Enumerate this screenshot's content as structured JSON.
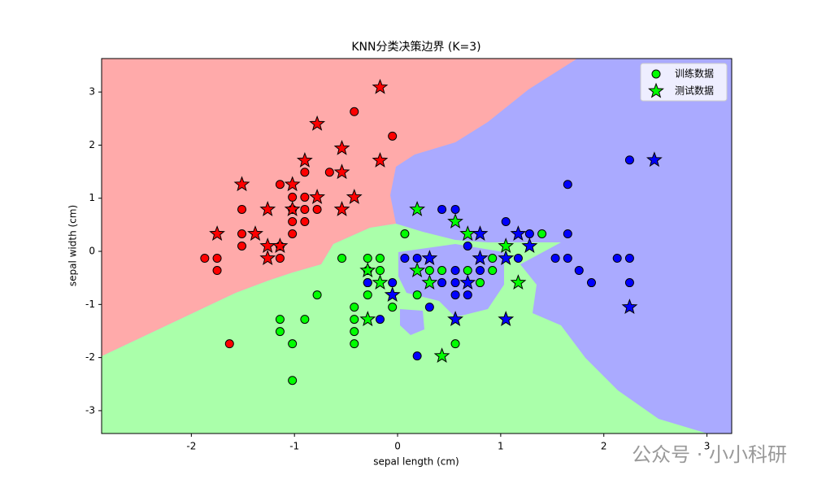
{
  "chart_data": {
    "type": "scatter",
    "title": "KNN分类决策边界 (K=3)",
    "x_label": "sepal length (cm)",
    "y_label": "sepal width (cm)",
    "xlim": [
      -2.87,
      3.24
    ],
    "ylim": [
      -3.43,
      3.63
    ],
    "xticks": [
      -2,
      -1,
      0,
      1,
      2,
      3
    ],
    "yticks": [
      -3,
      -2,
      -1,
      0,
      1,
      2,
      3
    ],
    "legend_position": "upper right",
    "legend": [
      {
        "name": "训练数据",
        "marker": "circle",
        "color": "#00ff00"
      },
      {
        "name": "测试数据",
        "marker": "star",
        "color": "#00ff00"
      }
    ],
    "series": [
      {
        "marker": "circle",
        "color": "#ff0000",
        "x": [
          -0.42,
          -0.05,
          -0.66,
          -0.9,
          -1.14,
          -0.9,
          -1.02,
          -0.78,
          -1.51,
          -1.02,
          -1.02,
          -0.9,
          -1.51,
          -1.02,
          -1.14,
          -1.51,
          -1.87,
          -1.75,
          -1.14,
          -1.75,
          -1.63,
          -0.9
        ],
        "y": [
          2.63,
          2.17,
          1.49,
          1.49,
          1.26,
          1.02,
          1.02,
          0.79,
          0.79,
          0.79,
          0.56,
          0.56,
          0.33,
          0.33,
          0.1,
          0.1,
          -0.13,
          -0.13,
          -0.13,
          -0.36,
          -1.74,
          0.79
        ]
      },
      {
        "marker": "circle",
        "color": "#00ff00",
        "x": [
          0.07,
          1.4,
          -0.54,
          -0.29,
          -0.17,
          0.92,
          -0.29,
          -0.17,
          0.31,
          0.43,
          0.68,
          0.92,
          -0.29,
          0.8,
          -0.78,
          -0.29,
          0.19,
          -0.05,
          -0.42,
          -1.14,
          -0.9,
          -0.42,
          -1.14,
          -0.42,
          -1.02,
          -0.42,
          0.56,
          -1.02
        ],
        "y": [
          0.33,
          0.33,
          -0.13,
          -0.13,
          -0.13,
          -0.13,
          -0.36,
          -0.36,
          -0.36,
          -0.36,
          -0.36,
          -0.36,
          -0.59,
          -0.59,
          -0.82,
          -0.82,
          -0.82,
          -1.05,
          -1.05,
          -1.28,
          -1.28,
          -1.28,
          -1.51,
          -1.51,
          -1.74,
          -1.74,
          -1.74,
          -2.43
        ]
      },
      {
        "marker": "circle",
        "color": "#0000ff",
        "x": [
          2.25,
          1.65,
          0.43,
          0.56,
          1.05,
          1.28,
          1.65,
          0.68,
          0.07,
          0.19,
          1.17,
          1.53,
          1.65,
          2.13,
          2.25,
          0.56,
          0.8,
          1.76,
          -0.29,
          -0.05,
          0.43,
          0.56,
          1.88,
          2.25,
          0.56,
          0.68,
          0.31,
          -0.17,
          0.19
        ],
        "y": [
          1.72,
          1.26,
          0.79,
          0.79,
          0.56,
          0.33,
          0.33,
          0.1,
          -0.13,
          -0.13,
          -0.13,
          -0.13,
          -0.13,
          -0.13,
          -0.13,
          -0.36,
          -0.36,
          -0.36,
          -0.59,
          -0.59,
          -0.59,
          -0.59,
          -0.59,
          -0.59,
          -0.82,
          -0.82,
          -1.05,
          -1.28,
          -1.97
        ]
      },
      {
        "marker": "star",
        "color": "#ff0000",
        "x": [
          -0.17,
          -0.78,
          -0.54,
          -0.9,
          -0.17,
          -1.51,
          -0.54,
          -1.02,
          -0.78,
          -0.42,
          -1.26,
          -1.02,
          -0.54,
          -1.38,
          -1.75,
          -1.26,
          -1.14,
          -1.26
        ],
        "y": [
          3.09,
          2.4,
          1.94,
          1.71,
          1.71,
          1.26,
          1.49,
          1.26,
          1.02,
          1.02,
          0.79,
          0.79,
          0.79,
          0.33,
          0.33,
          0.1,
          0.1,
          -0.13
        ]
      },
      {
        "marker": "star",
        "color": "#00ff00",
        "x": [
          0.19,
          0.56,
          0.68,
          1.05,
          0.19,
          -0.29,
          -0.17,
          0.31,
          1.17,
          -0.29,
          0.43
        ],
        "y": [
          0.79,
          0.56,
          0.33,
          0.1,
          -0.36,
          -0.36,
          -0.59,
          -0.59,
          -0.59,
          -1.28,
          -1.97
        ]
      },
      {
        "marker": "star",
        "color": "#0000ff",
        "x": [
          2.49,
          0.8,
          1.17,
          1.28,
          0.8,
          1.05,
          0.31,
          0.68,
          -0.05,
          0.56,
          1.05,
          2.25
        ],
        "y": [
          1.72,
          0.33,
          0.33,
          0.1,
          -0.13,
          -0.13,
          -0.13,
          -0.59,
          -0.82,
          -1.28,
          -1.28,
          -1.05
        ]
      }
    ],
    "watermark": "公众号 · 小小科研"
  }
}
